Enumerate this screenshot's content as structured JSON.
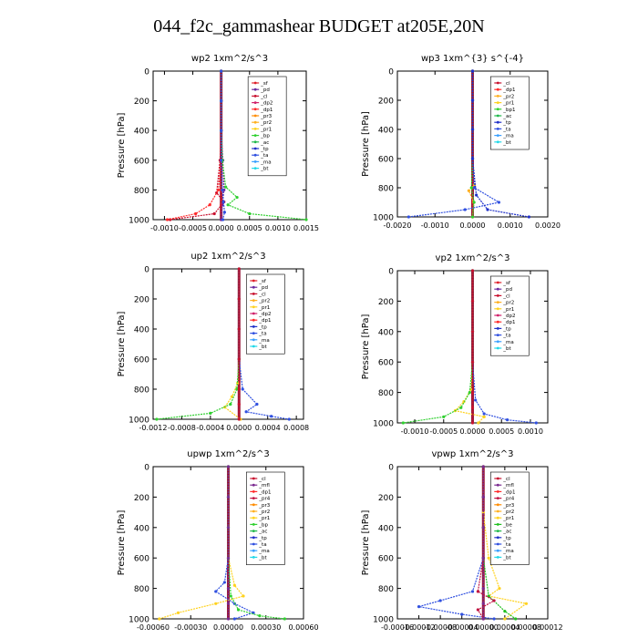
{
  "page_title": "044_f2c_gammashear  BUDGET at205E,20N",
  "colors": {
    "sf": "#e0202a",
    "pd": "#6a2aa0",
    "cl": "#c8102e",
    "dp2": "#d0206a",
    "dp1": "#ff2a2a",
    "pr3": "#ff8c00",
    "pr2": "#ffb020",
    "pr1": "#ffd21e",
    "bp": "#30d030",
    "bp1": "#30d030",
    "ac": "#1fb84a",
    "tp": "#2030c8",
    "ta": "#3050e0",
    "ma": "#3aa0ff",
    "bt": "#20d8e8",
    "mfl": "#7a2a90",
    "pr4": "#c01040",
    "be": "#20c020"
  },
  "chart_data": [
    {
      "type": "line",
      "title": "wp2   1xm^2/s^3",
      "ylabel": "Pressure [hPa]",
      "ylim": [
        1000,
        0
      ],
      "xlim": [
        -0.0012,
        0.0015
      ],
      "xticks": [
        -0.001,
        -0.0005,
        0.0,
        0.0005,
        0.001,
        0.0015
      ],
      "xtick_labels": [
        "-0.0010",
        "-0.0005",
        "0.0000",
        "0.0005",
        "0.0010",
        "0.0015"
      ],
      "yticks": [
        0,
        200,
        400,
        600,
        800,
        1000
      ],
      "legend": [
        "_sf",
        "_pd",
        "_cl",
        "_dp2",
        "_dp1",
        "_pr3",
        "_pr2",
        "_pr1",
        "_bp",
        "_ac",
        "_tp",
        "_ta",
        "_ma",
        "_bt"
      ],
      "legend_placement": "top-right",
      "series": [
        {
          "name": "_sf",
          "color": "sf",
          "x": [
            0,
            0,
            0,
            0,
            0,
            0,
            0
          ],
          "y": [
            0,
            200,
            400,
            600,
            800,
            900,
            1000
          ]
        },
        {
          "name": "_pd",
          "color": "pd",
          "x": [
            0,
            0,
            0,
            3e-05,
            5e-05,
            2e-05,
            0
          ],
          "y": [
            0,
            200,
            400,
            600,
            800,
            900,
            1000
          ]
        },
        {
          "name": "_cl",
          "color": "cl",
          "x": [
            0,
            0,
            0,
            -2e-05,
            -8e-05,
            5e-05,
            -0.00012,
            -0.0009
          ],
          "y": [
            0,
            200,
            400,
            600,
            820,
            880,
            960,
            1000
          ]
        },
        {
          "name": "_dp1",
          "color": "dp1",
          "x": [
            0,
            0,
            0,
            0,
            -5e-05,
            -0.0002,
            -0.00045,
            -0.00095
          ],
          "y": [
            0,
            200,
            400,
            600,
            800,
            900,
            960,
            1000
          ]
        },
        {
          "name": "_bp",
          "color": "bp",
          "x": [
            0,
            0,
            0,
            2e-05,
            8e-05,
            0.00028,
            0.00012,
            0.0005,
            0.0015
          ],
          "y": [
            0,
            200,
            400,
            600,
            780,
            850,
            900,
            960,
            1000
          ]
        },
        {
          "name": "_ta",
          "color": "ta",
          "x": [
            0,
            0,
            0,
            0,
            2e-05,
            4e-05,
            6e-05,
            3e-05
          ],
          "y": [
            0,
            200,
            400,
            600,
            800,
            880,
            950,
            1000
          ]
        }
      ]
    },
    {
      "type": "line",
      "title": "wp3   1xm^{3} s^{-4}",
      "ylabel": "Pressure [hPa]",
      "ylim": [
        1000,
        0
      ],
      "xlim": [
        -0.002,
        0.002
      ],
      "xticks": [
        -0.002,
        -0.001,
        0.0,
        0.001,
        0.002
      ],
      "xtick_labels": [
        "-0.0020",
        "-0.0010",
        "0.0000",
        "0.0010",
        "0.0020"
      ],
      "yticks": [
        0,
        200,
        400,
        600,
        800,
        1000
      ],
      "legend": [
        "_cl",
        "_dp1",
        "_pr2",
        "_pr1",
        "_bp1",
        "_ac",
        "_tp",
        "_ta",
        "_ma",
        "_bt"
      ],
      "legend_placement": "top-right",
      "series": [
        {
          "name": "_cl",
          "color": "cl",
          "x": [
            0,
            0,
            0,
            0,
            0,
            0,
            0
          ],
          "y": [
            0,
            200,
            400,
            600,
            800,
            900,
            1000
          ]
        },
        {
          "name": "_pr2",
          "color": "pr2",
          "x": [
            0,
            0,
            0,
            0,
            5e-05,
            -0.0001,
            3e-05,
            0
          ],
          "y": [
            0,
            200,
            400,
            600,
            780,
            820,
            900,
            1000
          ]
        },
        {
          "name": "_bp1",
          "color": "bp1",
          "x": [
            0,
            0,
            0,
            0,
            -3e-05,
            4e-05,
            0
          ],
          "y": [
            0,
            200,
            400,
            600,
            800,
            900,
            1000
          ]
        },
        {
          "name": "_ta",
          "color": "ta",
          "x": [
            0,
            0,
            0,
            0,
            5e-05,
            0.0007,
            -0.0002,
            -0.0017
          ],
          "y": [
            0,
            200,
            400,
            600,
            800,
            900,
            950,
            1000
          ]
        },
        {
          "name": "_tp",
          "color": "tp",
          "x": [
            0,
            0,
            0,
            0,
            0.0001,
            0.0004,
            0.0015
          ],
          "y": [
            0,
            200,
            400,
            600,
            850,
            950,
            1000
          ]
        }
      ]
    },
    {
      "type": "line",
      "title": "up2   1xm^2/s^3",
      "ylabel": "Pressure [hPa]",
      "ylim": [
        1000,
        0
      ],
      "xlim": [
        -0.0012,
        0.0009
      ],
      "xticks": [
        -0.0012,
        -0.0008,
        -0.0004,
        0.0,
        0.0004,
        0.0008
      ],
      "xtick_labels": [
        "-0.0012",
        "-0.0008",
        "-0.0004",
        "0.0000",
        "0.0004",
        "0.0008"
      ],
      "yticks": [
        0,
        200,
        400,
        600,
        800,
        1000
      ],
      "legend": [
        "_sf",
        "_pd",
        "_cl",
        "_pr2",
        "_pr1",
        "_dp2",
        "_dp1",
        "_tp",
        "_ta",
        "_ma",
        "_bt"
      ],
      "legend_placement": "top-right",
      "series": [
        {
          "name": "_pr1",
          "color": "pr1",
          "x": [
            0,
            0,
            0,
            0,
            -2e-05,
            -0.0001,
            -0.0002,
            2e-05
          ],
          "y": [
            0,
            200,
            400,
            600,
            760,
            850,
            920,
            1000
          ]
        },
        {
          "name": "_dp1",
          "color": "bp",
          "x": [
            0,
            0,
            0,
            0,
            -3e-05,
            -0.00012,
            -0.0004,
            -0.00115
          ],
          "y": [
            0,
            200,
            400,
            600,
            800,
            900,
            960,
            1000
          ]
        },
        {
          "name": "_ta",
          "color": "ta",
          "x": [
            0,
            0,
            0,
            0,
            5e-05,
            0.00025,
            0.0001,
            0.00045,
            0.0007
          ],
          "y": [
            0,
            200,
            400,
            600,
            800,
            900,
            950,
            980,
            1000
          ]
        },
        {
          "name": "_cl",
          "color": "cl",
          "x": [
            0,
            0,
            0,
            0,
            0,
            0,
            0
          ],
          "y": [
            0,
            200,
            400,
            600,
            800,
            900,
            1000
          ]
        }
      ]
    },
    {
      "type": "line",
      "title": "vp2   1xm^2/s^3",
      "ylabel": "Pressure [hPa]",
      "ylim": [
        1000,
        0
      ],
      "xlim": [
        -0.0013,
        0.0013
      ],
      "xticks": [
        -0.001,
        -0.0005,
        0.0,
        0.0005,
        0.001
      ],
      "xtick_labels": [
        "-0.0010",
        "-0.0005",
        "0.0000",
        "0.0005",
        "0.0010"
      ],
      "yticks": [
        0,
        200,
        400,
        600,
        800,
        1000
      ],
      "legend": [
        "_sf",
        "_pd",
        "_cl",
        "_pr2",
        "_pr1",
        "_dp2",
        "_dp1",
        "_tp",
        "_ta",
        "_ma",
        "_bt"
      ],
      "legend_placement": "top-right",
      "series": [
        {
          "name": "_pr1",
          "color": "pr1",
          "x": [
            0,
            0,
            0,
            0,
            -3e-05,
            -0.00015,
            -0.0003,
            0.0002,
            0.0001
          ],
          "y": [
            0,
            200,
            400,
            600,
            780,
            860,
            920,
            960,
            1000
          ]
        },
        {
          "name": "_dp1",
          "color": "bp",
          "x": [
            0,
            0,
            0,
            0,
            -5e-05,
            -0.0002,
            -0.0005,
            -0.0012
          ],
          "y": [
            0,
            200,
            400,
            600,
            800,
            900,
            960,
            1000
          ]
        },
        {
          "name": "_ta",
          "color": "ta",
          "x": [
            0,
            0,
            0,
            0,
            5e-05,
            0.0002,
            0.0006,
            0.0011
          ],
          "y": [
            0,
            200,
            400,
            600,
            850,
            940,
            980,
            1000
          ]
        },
        {
          "name": "_cl",
          "color": "cl",
          "x": [
            0,
            0,
            0,
            0,
            0,
            0,
            0
          ],
          "y": [
            0,
            200,
            400,
            600,
            800,
            900,
            1000
          ]
        }
      ]
    },
    {
      "type": "line",
      "title": "upwp   1xm^2/s^3",
      "ylabel": "Pressure [hPa]",
      "ylim": [
        1000,
        0
      ],
      "xlim": [
        -0.0006,
        0.0006
      ],
      "xticks": [
        -0.0006,
        -0.0003,
        0.0,
        0.0003,
        0.0006
      ],
      "xtick_labels": [
        "-0.00060",
        "-0.00030",
        "0.00000",
        "0.00030",
        "0.00060"
      ],
      "yticks": [
        0,
        200,
        400,
        600,
        800,
        1000
      ],
      "legend": [
        "_cl",
        "_mfl",
        "_dp1",
        "_pr4",
        "_pr3",
        "_pr2",
        "_pr1",
        "_bp",
        "_ac",
        "_tp",
        "_ta",
        "_ma",
        "_bt"
      ],
      "legend_placement": "top-right",
      "series": [
        {
          "name": "_pr1",
          "color": "pr1",
          "x": [
            0,
            0,
            0,
            0,
            5e-05,
            0.00012,
            -0.0001,
            -0.0004,
            -0.00055
          ],
          "y": [
            0,
            200,
            400,
            600,
            780,
            850,
            900,
            960,
            1000
          ]
        },
        {
          "name": "_ta",
          "color": "ta",
          "x": [
            0,
            0,
            0,
            0,
            -3e-05,
            -0.0001,
            5e-05,
            0.0002,
            5e-05
          ],
          "y": [
            0,
            200,
            400,
            600,
            760,
            820,
            900,
            960,
            1000
          ]
        },
        {
          "name": "_bp",
          "color": "bp",
          "x": [
            0,
            0,
            0,
            0,
            2e-05,
            8e-05,
            0.00025,
            0.00045
          ],
          "y": [
            0,
            200,
            400,
            600,
            850,
            940,
            980,
            1000
          ]
        },
        {
          "name": "_cl",
          "color": "mfl",
          "x": [
            0,
            0,
            0,
            0,
            0,
            0,
            0
          ],
          "y": [
            0,
            200,
            400,
            600,
            800,
            900,
            1000
          ]
        }
      ]
    },
    {
      "type": "line",
      "title": "vpwp   1xm^2/s^3",
      "ylabel": "Pressure [hPa]",
      "ylim": [
        1000,
        0
      ],
      "xlim": [
        -0.00016,
        0.00012
      ],
      "xticks": [
        -0.00016,
        -0.00012,
        -8e-05,
        -4e-05,
        0.0,
        4e-05,
        8e-05,
        0.00012
      ],
      "xtick_labels": [
        "-0.00016",
        "-0.00012",
        "-0.00008",
        "-0.00004",
        "0.00000",
        "0.00004",
        "0.00008",
        "0.00012"
      ],
      "yticks": [
        0,
        200,
        400,
        600,
        800,
        1000
      ],
      "legend": [
        "_cl",
        "_mfl",
        "_dp1",
        "_pr4",
        "_pr3",
        "_pr2",
        "_pr1",
        "_be",
        "_ac",
        "_tp",
        "_ta",
        "_ma",
        "_bt"
      ],
      "legend_placement": "top-right",
      "series": [
        {
          "name": "_pr1",
          "color": "pr1",
          "x": [
            0,
            0,
            0,
            1e-05,
            3e-05,
            1e-05,
            8e-05,
            4e-05
          ],
          "y": [
            0,
            200,
            300,
            600,
            800,
            850,
            900,
            1000
          ]
        },
        {
          "name": "_ta",
          "color": "ta",
          "x": [
            0,
            0,
            0,
            0,
            -2e-05,
            -8e-05,
            -0.00012,
            -4e-05,
            2e-05
          ],
          "y": [
            0,
            200,
            400,
            600,
            820,
            880,
            920,
            970,
            1000
          ]
        },
        {
          "name": "_be",
          "color": "be",
          "x": [
            0,
            0,
            0,
            0,
            1e-05,
            4e-05,
            6e-05
          ],
          "y": [
            0,
            200,
            400,
            600,
            850,
            950,
            1000
          ]
        },
        {
          "name": "_pr4",
          "color": "pr4",
          "x": [
            0,
            0,
            0,
            0,
            -1e-05,
            2e-05,
            -1e-05,
            0
          ],
          "y": [
            0,
            200,
            400,
            600,
            820,
            880,
            940,
            1000
          ]
        },
        {
          "name": "_cl",
          "color": "mfl",
          "x": [
            0,
            0,
            0,
            0,
            0,
            0,
            0
          ],
          "y": [
            0,
            200,
            400,
            600,
            800,
            900,
            1000
          ]
        }
      ]
    }
  ]
}
